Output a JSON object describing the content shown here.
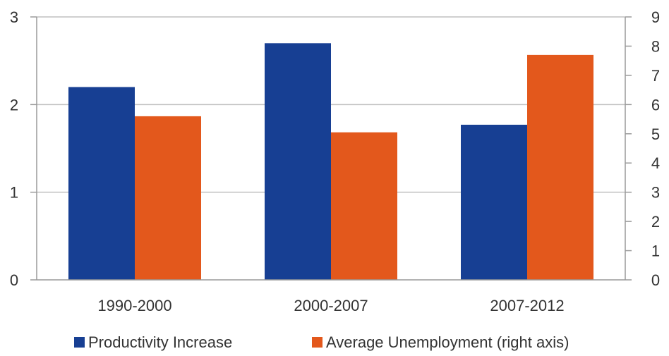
{
  "chart_data": {
    "type": "bar",
    "categories": [
      "1990-2000",
      "2000-2007",
      "2007-2012"
    ],
    "series": [
      {
        "name": "Productivity Increase",
        "axis": "left",
        "color": "#173F93",
        "values": [
          2.2,
          2.7,
          1.77
        ]
      },
      {
        "name": "Average Unemployment (right axis)",
        "axis": "right",
        "color": "#E3581C",
        "values": [
          5.6,
          5.05,
          7.7
        ]
      }
    ],
    "left_axis": {
      "ylim": [
        0,
        3
      ],
      "ticks": [
        "0",
        "1",
        "2",
        "3"
      ]
    },
    "right_axis": {
      "ylim": [
        0,
        9
      ],
      "ticks": [
        "0",
        "1",
        "2",
        "3",
        "4",
        "5",
        "6",
        "7",
        "8",
        "9"
      ]
    },
    "grid": true,
    "legend_position": "bottom"
  }
}
